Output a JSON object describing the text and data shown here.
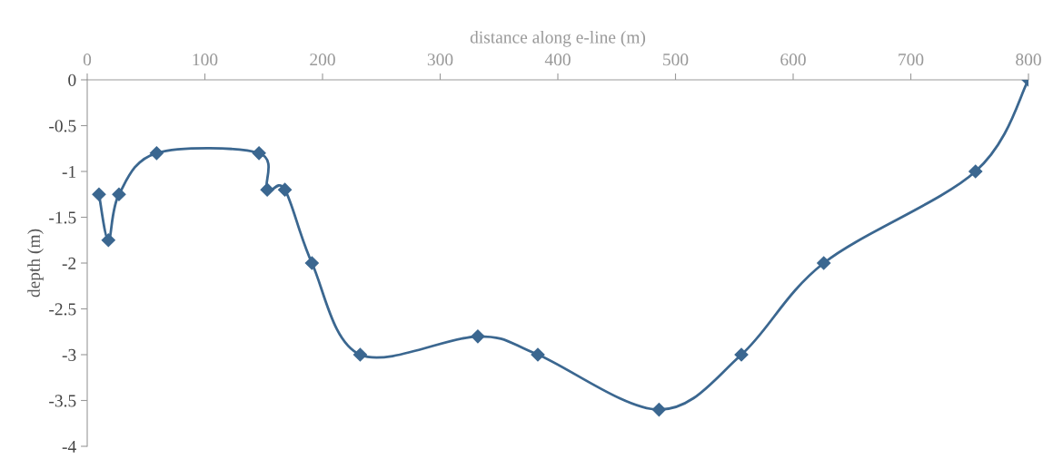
{
  "chart_data": {
    "type": "line",
    "xlabel": "distance along e-line (m)",
    "ylabel": "depth (m)",
    "x": [
      10,
      18,
      27,
      59,
      146,
      153,
      168,
      191,
      232,
      332,
      383,
      486,
      556,
      626,
      755,
      800
    ],
    "series": [
      {
        "color": "#3b6790",
        "values": [
          -1.25,
          -1.75,
          -1.25,
          -0.8,
          -0.8,
          -1.2,
          -1.2,
          -2,
          -3,
          -2.8,
          -3,
          -3.6,
          -3,
          -2,
          -1,
          0
        ]
      }
    ],
    "xlim": [
      0,
      800
    ],
    "xticks": [
      0,
      100,
      200,
      300,
      400,
      500,
      600,
      700,
      800
    ],
    "ylim": [
      -4,
      0
    ],
    "yticks": [
      0,
      -0.5,
      -1,
      -1.5,
      -2,
      -2.5,
      -3,
      -3.5,
      -4
    ],
    "grid": false,
    "legend": false,
    "marker": "diamond",
    "line_style": "solid"
  }
}
